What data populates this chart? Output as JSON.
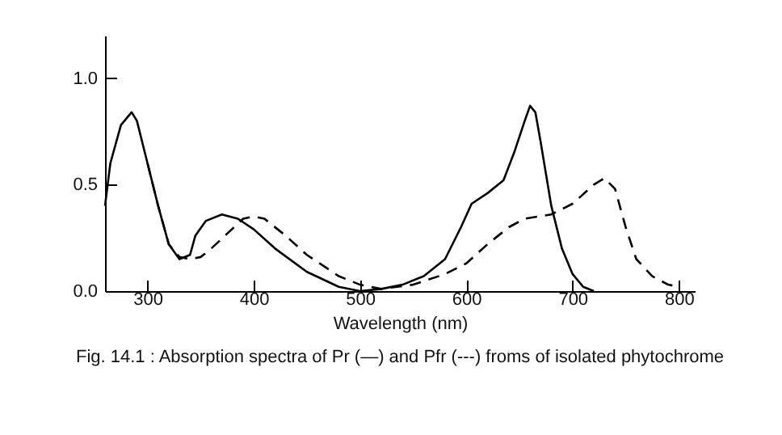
{
  "chart_data": {
    "type": "line",
    "xlabel": "Wavelength (nm)",
    "annotations": [
      "Fig. 14.1 : Absorption spectra of Pr (—) and Pfr (---) froms of isolated phytochrome"
    ],
    "xlim": [
      260,
      815
    ],
    "ylim": [
      0,
      1.2
    ],
    "xticks": [
      300,
      400,
      500,
      600,
      700,
      800
    ],
    "yticks": [
      {
        "value": 0,
        "label": "0.0"
      },
      {
        "value": 0.5,
        "label": "0.5"
      },
      {
        "value": 1,
        "label": "1.0"
      }
    ],
    "grid": false,
    "marker": "none",
    "series": [
      {
        "color": "#000000",
        "line_style": "solid",
        "x": [
          260,
          265,
          275,
          285,
          290,
          300,
          310,
          320,
          330,
          340,
          345,
          355,
          370,
          385,
          400,
          420,
          450,
          480,
          500,
          520,
          540,
          560,
          580,
          595,
          605,
          620,
          635,
          645,
          655,
          660,
          665,
          670,
          680,
          690,
          700,
          710,
          720
        ],
        "values": [
          0.4,
          0.6,
          0.78,
          0.84,
          0.8,
          0.6,
          0.4,
          0.22,
          0.15,
          0.17,
          0.26,
          0.33,
          0.36,
          0.34,
          0.29,
          0.2,
          0.09,
          0.02,
          0.0,
          0.01,
          0.03,
          0.07,
          0.15,
          0.3,
          0.41,
          0.46,
          0.52,
          0.65,
          0.8,
          0.87,
          0.84,
          0.7,
          0.4,
          0.2,
          0.08,
          0.02,
          0.0
        ]
      },
      {
        "color": "#000000",
        "line_style": "dashed",
        "x": [
          300,
          310,
          320,
          330,
          340,
          350,
          360,
          375,
          390,
          400,
          410,
          430,
          450,
          480,
          500,
          520,
          550,
          580,
          600,
          620,
          640,
          655,
          680,
          700,
          720,
          730,
          740,
          750,
          760,
          775,
          790,
          800
        ],
        "values": [
          0.6,
          0.4,
          0.22,
          0.16,
          0.15,
          0.16,
          0.2,
          0.27,
          0.34,
          0.35,
          0.34,
          0.26,
          0.17,
          0.07,
          0.03,
          0.01,
          0.03,
          0.08,
          0.13,
          0.22,
          0.3,
          0.34,
          0.36,
          0.41,
          0.5,
          0.53,
          0.48,
          0.3,
          0.15,
          0.07,
          0.03,
          0.02
        ]
      }
    ]
  }
}
